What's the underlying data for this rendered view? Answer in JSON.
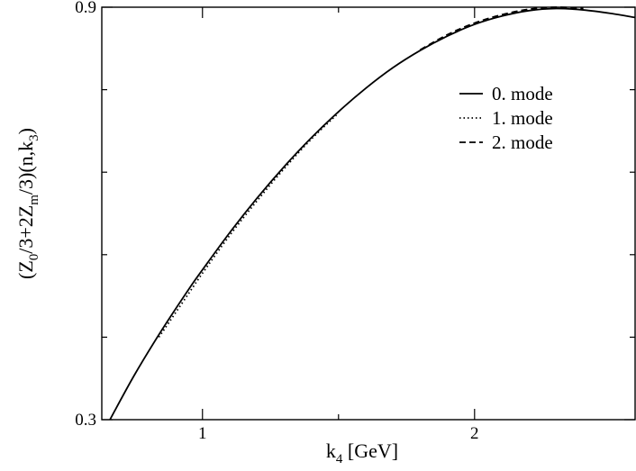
{
  "chart_data": {
    "type": "line",
    "title": "",
    "xlabel": {
      "base": "k",
      "sub": "4",
      "rest": " [GeV]"
    },
    "ylabel": {
      "parts": [
        {
          "t": "(Z",
          "sub": false
        },
        {
          "t": "0",
          "sub": true
        },
        {
          "t": "/3+2Z",
          "sub": false
        },
        {
          "t": "m",
          "sub": true
        },
        {
          "t": "/3)(n,k",
          "sub": false
        },
        {
          "t": "3",
          "sub": true
        },
        {
          "t": ")",
          "sub": false
        }
      ]
    },
    "xlim": [
      0.63,
      2.59
    ],
    "ylim": [
      0.3,
      0.9
    ],
    "xticks": [
      1,
      2
    ],
    "xtick_labels": [
      "1",
      "2"
    ],
    "yticks": [
      0.3,
      0.9
    ],
    "ytick_labels": [
      "0.3",
      "0.9"
    ],
    "x_minor_ticks": [
      1.5
    ],
    "y_minor_ticks": [
      0.42,
      0.54,
      0.66,
      0.78
    ],
    "grid": false,
    "legend_position": "top-right",
    "series": [
      {
        "name": "0. mode",
        "style": "solid",
        "color": "#000000",
        "x": [
          0.66,
          0.75,
          0.85,
          0.95,
          1.0,
          1.1,
          1.2,
          1.3,
          1.4,
          1.5,
          1.6,
          1.7,
          1.8,
          1.9,
          2.0,
          2.1,
          2.2,
          2.3,
          2.4,
          2.5,
          2.59
        ],
        "y": [
          0.3,
          0.365,
          0.43,
          0.49,
          0.518,
          0.572,
          0.622,
          0.668,
          0.71,
          0.748,
          0.782,
          0.812,
          0.837,
          0.858,
          0.875,
          0.887,
          0.895,
          0.898,
          0.896,
          0.891,
          0.885
        ]
      },
      {
        "name": "1. mode",
        "style": "dotted",
        "color": "#000000",
        "x": [
          0.84,
          0.95,
          1.0,
          1.1,
          1.2,
          1.3,
          1.4,
          1.5
        ],
        "y": [
          0.42,
          0.484,
          0.513,
          0.568,
          0.618,
          0.665,
          0.708,
          0.746
        ]
      },
      {
        "name": "2. mode",
        "style": "dashed",
        "color": "#000000",
        "x": [
          1.8,
          1.9,
          2.0,
          2.1,
          2.2,
          2.3,
          2.4
        ],
        "y": [
          0.838,
          0.86,
          0.877,
          0.889,
          0.897,
          0.9,
          0.898
        ]
      }
    ]
  }
}
